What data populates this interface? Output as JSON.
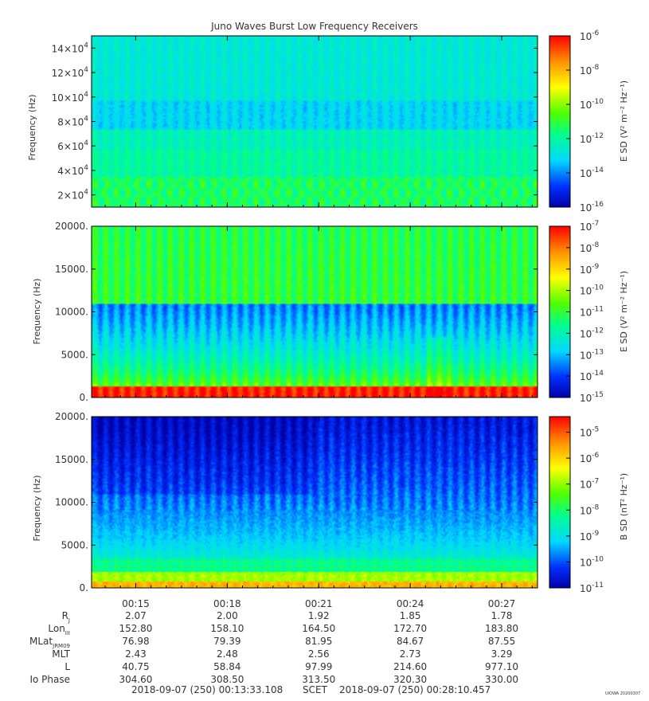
{
  "chart_data": [
    {
      "type": "heatmap",
      "title": "Juno Waves Burst Low Frequency Receivers",
      "ylabel": "Frequency (Hz)",
      "ylim": [
        10000,
        150000
      ],
      "y_ticks": [
        20000,
        40000,
        60000,
        80000,
        100000,
        120000,
        140000
      ],
      "y_tick_labels": [
        {
          "m": "2×10",
          "e": "4"
        },
        {
          "m": "4×10",
          "e": "4"
        },
        {
          "m": "6×10",
          "e": "4"
        },
        {
          "m": "8×10",
          "e": "4"
        },
        {
          "m": "10×10",
          "e": "4"
        },
        {
          "m": "12×10",
          "e": "4"
        },
        {
          "m": "14×10",
          "e": "4"
        }
      ],
      "colorbar": {
        "label": "E SD (V² m⁻² Hz⁻¹)",
        "log_range": [
          -16,
          -6
        ],
        "tick_exponents": [
          -6,
          -8,
          -10,
          -12,
          -14,
          -16
        ]
      }
    },
    {
      "type": "heatmap",
      "ylabel": "Frequency (Hz)",
      "ylim": [
        0,
        20000
      ],
      "y_ticks": [
        0,
        5000,
        10000,
        15000,
        20000
      ],
      "y_tick_labels": [
        "0.",
        "5000.",
        "10000.",
        "15000.",
        "20000."
      ],
      "colorbar": {
        "label": "E SD (V² m⁻² Hz⁻¹)",
        "log_range": [
          -15,
          -7
        ],
        "tick_exponents": [
          -7,
          -8,
          -9,
          -10,
          -11,
          -12,
          -13,
          -14,
          -15
        ]
      }
    },
    {
      "type": "heatmap",
      "ylabel": "Frequency (Hz)",
      "ylim": [
        0,
        20000
      ],
      "y_ticks": [
        0,
        5000,
        10000,
        15000,
        20000
      ],
      "y_tick_labels": [
        "0.",
        "5000.",
        "10000.",
        "15000.",
        "20000."
      ],
      "colorbar": {
        "label": "B SD (nT² Hz⁻¹)",
        "log_range": [
          -11,
          -4.4
        ],
        "tick_exponents": [
          -5,
          -6,
          -7,
          -8,
          -9,
          -10,
          -11
        ]
      }
    }
  ],
  "time_axis": {
    "range_minutes": [
      13.5518,
      28.1743
    ],
    "tick_minutes": [
      15,
      18,
      21,
      24,
      27
    ],
    "tick_labels": [
      "00:15",
      "00:18",
      "00:21",
      "00:24",
      "00:27"
    ]
  },
  "ephemeris": {
    "rows": [
      {
        "label": "R",
        "sub": "J",
        "values": [
          "2.07",
          "2.00",
          "1.92",
          "1.85",
          "1.78"
        ]
      },
      {
        "label": "Lon",
        "sub": "III",
        "values": [
          "152.80",
          "158.10",
          "164.50",
          "172.70",
          "183.80"
        ]
      },
      {
        "label": "MLat",
        "sub": "JRM09",
        "values": [
          "76.98",
          "79.39",
          "81.95",
          "84.67",
          "87.55"
        ]
      },
      {
        "label": "MLT",
        "sub": "",
        "values": [
          "2.43",
          "2.48",
          "2.56",
          "2.73",
          "3.29"
        ]
      },
      {
        "label": "L",
        "sub": "",
        "values": [
          "40.75",
          "58.84",
          "97.99",
          "214.60",
          "977.10"
        ]
      },
      {
        "label": "Io Phase",
        "sub": "",
        "values": [
          "304.60",
          "308.50",
          "313.50",
          "320.30",
          "330.00"
        ]
      }
    ]
  },
  "footer": {
    "start": "2018-09-07 (250) 00:13:33.108",
    "scet": "SCET",
    "end": "2018-09-07 (250) 00:28:10.457",
    "stamp": "UIOWA 20200307"
  }
}
